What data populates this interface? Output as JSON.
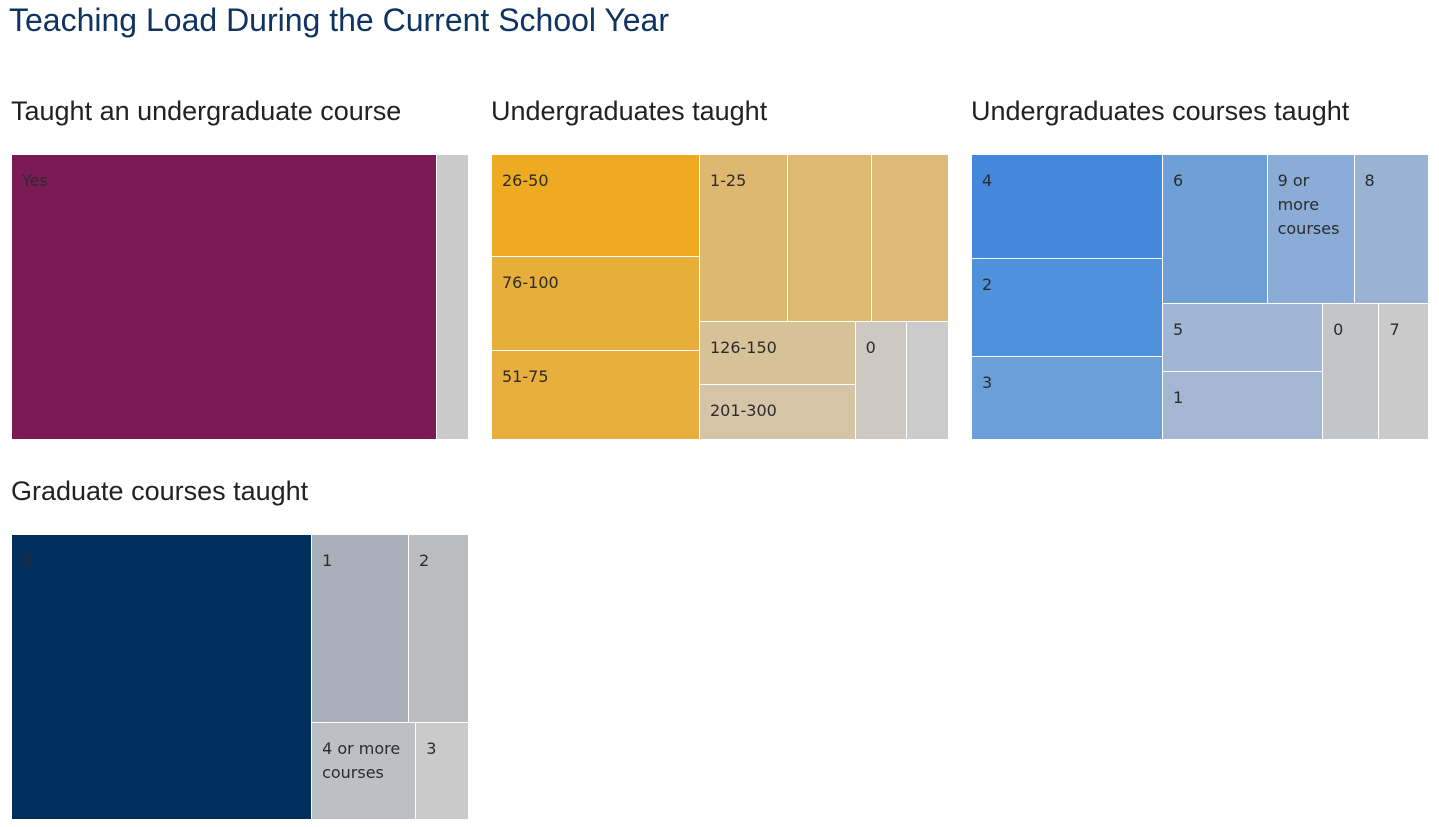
{
  "title": "Teaching Load During the Current School Year",
  "chart_data": [
    {
      "type": "treemap",
      "title": "Taught an undergraduate course",
      "categories": [
        "Yes",
        null
      ],
      "values": [
        93,
        7
      ],
      "colors": [
        "#7b1a54",
        "#cacaca"
      ]
    },
    {
      "type": "treemap",
      "title": "Undergraduates taught",
      "categories": [
        "26-50",
        "76-100",
        "51-75",
        "1-25",
        null,
        null,
        "126-150",
        "201-300",
        "0",
        null
      ],
      "values": [
        16.1,
        14.9,
        14.1,
        11.2,
        10.6,
        9.8,
        7.5,
        6.5,
        4.6,
        3.8
      ],
      "colors": [
        "#eeab22",
        "#e8ae3a",
        "#e8af3e",
        "#dfb86f",
        "#dfb872",
        "#dfb978",
        "#d7c298",
        "#d5c4a6",
        "#cdc8c2",
        "#cbcbcb"
      ]
    },
    {
      "type": "treemap",
      "title": "Undergraduates courses taught",
      "categories": [
        "4",
        "2",
        "3",
        "6",
        "9 or more courses",
        "8",
        "5",
        "1",
        "0",
        "7"
      ],
      "values": [
        15,
        14.2,
        12,
        11.8,
        9.8,
        8.4,
        8.3,
        8.2,
        5.8,
        5.1
      ],
      "colors": [
        "#4388dd",
        "#5091dc",
        "#6b9fd8",
        "#6e9fd7",
        "#8aacd6",
        "#9ab3d4",
        "#a1b5d4",
        "#a3b6d3",
        "#c4c5c8",
        "#cacaca"
      ]
    },
    {
      "type": "treemap",
      "title": "Graduate courses taught",
      "categories": [
        "0",
        "1",
        "2",
        "4 or more courses",
        "3"
      ],
      "values": [
        65.2,
        13.9,
        8.6,
        7.7,
        3.9
      ],
      "colors": [
        "#002f5e",
        "#a9afb8",
        "#babcc0",
        "#bcc0c4",
        "#cacaca"
      ]
    }
  ]
}
